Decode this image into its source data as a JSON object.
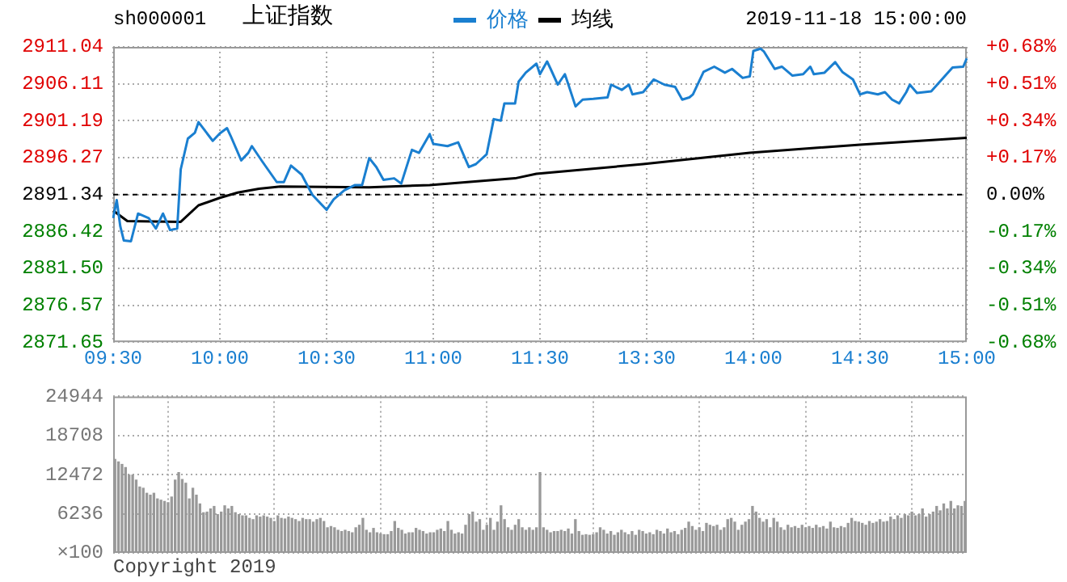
{
  "chart_data": [
    {
      "type": "line",
      "title": "上证指数",
      "subtitle": "sh000001",
      "annotations": [
        "2019-11-18 15:00:00"
      ],
      "legend": "top",
      "grid": true,
      "marker": "none",
      "line_style": "solid",
      "categories": [
        "09:30",
        null,
        null,
        null,
        null,
        null,
        null,
        null,
        null,
        null,
        null,
        null,
        null,
        null,
        null,
        null,
        null,
        null,
        null,
        null,
        null,
        null,
        null,
        null,
        null,
        null,
        null,
        null,
        null,
        null,
        "10:00",
        null,
        null,
        null,
        null,
        null,
        null,
        null,
        null,
        null,
        null,
        null,
        null,
        null,
        null,
        null,
        null,
        null,
        null,
        null,
        null,
        null,
        null,
        null,
        null,
        null,
        null,
        null,
        null,
        null,
        "10:30",
        null,
        null,
        null,
        null,
        null,
        null,
        null,
        null,
        null,
        null,
        null,
        null,
        null,
        null,
        null,
        null,
        null,
        null,
        null,
        null,
        null,
        null,
        null,
        null,
        null,
        null,
        null,
        null,
        null,
        "11:00",
        null,
        null,
        null,
        null,
        null,
        null,
        null,
        null,
        null,
        null,
        null,
        null,
        null,
        null,
        null,
        null,
        null,
        null,
        null,
        null,
        null,
        null,
        null,
        null,
        null,
        null,
        null,
        null,
        null,
        "11:30",
        null,
        null,
        null,
        null,
        null,
        null,
        null,
        null,
        null,
        null,
        null,
        null,
        null,
        null,
        null,
        null,
        null,
        null,
        null,
        null,
        null,
        null,
        null,
        null,
        null,
        null,
        null,
        null,
        null,
        "13:30",
        null,
        null,
        null,
        null,
        null,
        null,
        null,
        null,
        null,
        null,
        null,
        null,
        null,
        null,
        null,
        null,
        null,
        null,
        null,
        null,
        null,
        null,
        null,
        null,
        null,
        null,
        null,
        null,
        null,
        "14:00",
        null,
        null,
        null,
        null,
        null,
        null,
        null,
        null,
        null,
        null,
        null,
        null,
        null,
        null,
        null,
        null,
        null,
        null,
        null,
        null,
        null,
        null,
        null,
        null,
        null,
        null,
        null,
        null,
        null,
        "14:30",
        null,
        null,
        null,
        null,
        null,
        null,
        null,
        null,
        null,
        null,
        null,
        null,
        null,
        null,
        null,
        null,
        null,
        null,
        null,
        null,
        null,
        null,
        null,
        null,
        null,
        null,
        null,
        null,
        null,
        "15:00"
      ],
      "ylim": [
        2871.65,
        2911.04
      ],
      "yticks": [
        2871.65,
        2876.57,
        {
          "value": 2881.5,
          "label": "2881.50"
        },
        2886.42,
        2891.34,
        2896.27,
        2901.19,
        2906.11,
        2911.04
      ],
      "y2lim": [
        -0.68,
        0.68
      ],
      "y2ticks": [
        {
          "value": -0.68,
          "label": "-0.68%"
        },
        {
          "value": -0.51,
          "label": "-0.51%"
        },
        {
          "value": -0.34,
          "label": "-0.34%"
        },
        {
          "value": -0.17,
          "label": "-0.17%"
        },
        {
          "value": 0,
          "label": "0.00%"
        },
        {
          "value": 0.17,
          "label": "+0.17%"
        },
        {
          "value": 0.34,
          "label": "+0.34%"
        },
        {
          "value": 0.51,
          "label": "+0.51%"
        },
        {
          "value": 0.68,
          "label": "+0.68%"
        }
      ],
      "ref_lines": [
        {
          "axis": "y",
          "value": 2891.34,
          "color": "#000000",
          "line_style": "dashed"
        }
      ],
      "series": [
        {
          "name": "价格",
          "color": "#1a7fd0",
          "values": [
            2888.2,
            2890.6,
            2887.1,
            2885.2,
            null,
            2885.1,
            null,
            2888.8,
            null,
            null,
            2888.2,
            null,
            2886.8,
            null,
            2888.8,
            null,
            2886.6,
            null,
            2886.8,
            2894.7,
            null,
            2898.8,
            null,
            2899.6,
            2901.0,
            null,
            null,
            null,
            2898.5,
            null,
            2899.5,
            null,
            2900.2,
            2899.2,
            null,
            null,
            2895.9,
            null,
            2896.9,
            2897.8,
            null,
            null,
            2895.7,
            null,
            null,
            null,
            2893.0,
            null,
            2893.0,
            null,
            2895.2,
            null,
            null,
            2894.0,
            null,
            null,
            2891.3,
            null,
            null,
            null,
            2889.3,
            null,
            2890.7,
            null,
            null,
            2891.9,
            null,
            null,
            2892.6,
            null,
            2892.6,
            null,
            2896.2,
            null,
            2895.0,
            null,
            2893.3,
            null,
            null,
            2893.5,
            null,
            2892.8,
            null,
            null,
            2897.3,
            null,
            2896.9,
            null,
            null,
            2899.4,
            2898.1,
            null,
            null,
            null,
            2897.8,
            null,
            null,
            2898.3,
            null,
            null,
            2895.0,
            null,
            2895.4,
            null,
            null,
            2896.7,
            null,
            2901.4,
            null,
            2901.2,
            2903.5,
            null,
            null,
            2903.5,
            2906.4,
            null,
            2907.6,
            null,
            null,
            2908.8,
            2907.4,
            null,
            2909.1,
            2908.1,
            null,
            2906.0,
            null,
            2907.4,
            2906.0,
            null,
            2903.1,
            null,
            2904.0,
            null,
            null,
            2904.1,
            null,
            null,
            null,
            2904.3,
            2906.0,
            null,
            null,
            2905.3,
            null,
            2906.0,
            2904.7,
            null,
            null,
            2905.0,
            null,
            null,
            2906.7,
            null,
            null,
            2906.0,
            null,
            null,
            2905.7,
            null,
            2904.0,
            null,
            2904.3,
            2904.7,
            null,
            null,
            2907.7,
            null,
            null,
            2908.4,
            null,
            null,
            2907.6,
            null,
            2908.1,
            null,
            null,
            2906.9,
            null,
            2907.1,
            2910.5,
            null,
            2910.8,
            2910.4,
            null,
            null,
            2908.1,
            null,
            2908.4,
            null,
            null,
            2907.2,
            null,
            null,
            2907.4,
            null,
            2908.4,
            2907.4,
            null,
            null,
            2907.6,
            null,
            null,
            2909.0,
            null,
            2907.7,
            null,
            null,
            2906.7,
            null,
            2904.7,
            null,
            2905.0,
            null,
            null,
            2904.7,
            null,
            2905.0,
            null,
            2904.0,
            null,
            2903.5,
            null,
            2905.0,
            2906.0,
            null,
            2904.9,
            null,
            null,
            null,
            2905.1,
            null,
            null,
            2906.7,
            null,
            null,
            2908.3,
            null,
            null,
            2908.4,
            2909.5
          ]
        },
        {
          "name": "均线",
          "color": "#000000",
          "values": [
            2889.2,
            null,
            null,
            null,
            2887.8,
            null,
            null,
            null,
            null,
            null,
            null,
            null,
            null,
            null,
            null,
            null,
            null,
            null,
            null,
            2887.7,
            null,
            null,
            null,
            null,
            2889.9,
            null,
            null,
            null,
            null,
            null,
            2890.9,
            null,
            null,
            null,
            null,
            2891.6,
            null,
            null,
            null,
            null,
            null,
            2892.1,
            null,
            null,
            null,
            null,
            null,
            2892.4,
            null,
            null,
            null,
            null,
            null,
            null,
            null,
            null,
            null,
            null,
            null,
            null,
            null,
            null,
            null,
            null,
            null,
            null,
            null,
            null,
            null,
            null,
            null,
            null,
            2892.3,
            null,
            null,
            null,
            null,
            null,
            null,
            null,
            null,
            null,
            null,
            null,
            null,
            null,
            null,
            null,
            null,
            2892.6,
            null,
            null,
            null,
            null,
            null,
            null,
            null,
            null,
            null,
            null,
            null,
            null,
            null,
            null,
            null,
            null,
            null,
            null,
            null,
            null,
            null,
            null,
            null,
            2893.5,
            null,
            null,
            null,
            null,
            null,
            2894.1,
            null,
            null,
            null,
            null,
            null,
            null,
            null,
            null,
            null,
            null,
            null,
            null,
            null,
            null,
            null,
            null,
            null,
            null,
            null,
            null,
            null,
            null,
            null,
            null,
            null,
            null,
            null,
            null,
            null,
            2895.4,
            null,
            null,
            null,
            null,
            null,
            null,
            null,
            null,
            null,
            null,
            null,
            null,
            null,
            null,
            null,
            null,
            null,
            null,
            null,
            null,
            null,
            null,
            null,
            null,
            null,
            null,
            null,
            null,
            null,
            2896.9,
            null,
            null,
            null,
            null,
            null,
            null,
            null,
            null,
            null,
            null,
            null,
            null,
            null,
            null,
            null,
            null,
            null,
            null,
            null,
            null,
            null,
            null,
            null,
            null,
            null,
            null,
            null,
            null,
            null,
            null,
            2898.0,
            null,
            null,
            null,
            null,
            null,
            null,
            null,
            null,
            null,
            null,
            null,
            null,
            null,
            null,
            null,
            null,
            null,
            null,
            null,
            null,
            null,
            null,
            null,
            null,
            null,
            null,
            null,
            null,
            null,
            2898.9
          ]
        }
      ]
    },
    {
      "type": "bar",
      "color": "#999999",
      "grid": true,
      "tick_labels": "y",
      "annotations": [
        "Copyright 2019"
      ],
      "ylabel": "×100",
      "categories": [
        null,
        null,
        null,
        null,
        null,
        null,
        null,
        null,
        null,
        null,
        null,
        null,
        null,
        null,
        null,
        null,
        null,
        null,
        null,
        null,
        null,
        null,
        null,
        null,
        null,
        null,
        null,
        null,
        null,
        null,
        null,
        null,
        null,
        null,
        null,
        null,
        null,
        null,
        null,
        null,
        null,
        null,
        null,
        null,
        null,
        null,
        null,
        null,
        null,
        null,
        null,
        null,
        null,
        null,
        null,
        null,
        null,
        null,
        null,
        null,
        null,
        null,
        null,
        null,
        null,
        null,
        null,
        null,
        null,
        null,
        null,
        null,
        null,
        null,
        null,
        null,
        null,
        null,
        null,
        null,
        null,
        null,
        null,
        null,
        null,
        null,
        null,
        null,
        null,
        null,
        null,
        null,
        null,
        null,
        null,
        null,
        null,
        null,
        null,
        null,
        null,
        null,
        null,
        null,
        null,
        null,
        null,
        null,
        null,
        null,
        null,
        null,
        null,
        null,
        null,
        null,
        null,
        null,
        null,
        null,
        null,
        null,
        null,
        null,
        null,
        null,
        null,
        null,
        null,
        null,
        null,
        null,
        null,
        null,
        null,
        null,
        null,
        null,
        null,
        null,
        null,
        null,
        null,
        null,
        null,
        null,
        null,
        null,
        null,
        null,
        null,
        null,
        null,
        null,
        null,
        null,
        null,
        null,
        null,
        null,
        null,
        null,
        null,
        null,
        null,
        null,
        null,
        null,
        null,
        null,
        null,
        null,
        null,
        null,
        null,
        null,
        null,
        null,
        null,
        null,
        null,
        null,
        null,
        null,
        null,
        null,
        null,
        null,
        null,
        null,
        null,
        null,
        null,
        null,
        null,
        null,
        null,
        null,
        null,
        null,
        null,
        null,
        null,
        null,
        null,
        null,
        null,
        null,
        null,
        null,
        null,
        null,
        null,
        null,
        null,
        null,
        null,
        null,
        null,
        null,
        null,
        null,
        null,
        null,
        null,
        null,
        null,
        null,
        null,
        null,
        null,
        null,
        null,
        null,
        null,
        null,
        null,
        null,
        null,
        null,
        null
      ],
      "ylim": [
        0,
        24944
      ],
      "yticks": [
        {
          "value": 0,
          "label": null
        },
        6236,
        12472,
        18708,
        24944
      ],
      "values": [
        14900,
        14500,
        14100,
        13600,
        12400,
        12400,
        11600,
        10500,
        10300,
        9500,
        9200,
        9500,
        8600,
        8400,
        8200,
        8000,
        8900,
        11600,
        12800,
        11700,
        11100,
        8600,
        10300,
        9200,
        7800,
        6400,
        6500,
        7000,
        7400,
        6100,
        6500,
        7500,
        7000,
        7400,
        6400,
        6100,
        5900,
        5900,
        5500,
        5300,
        5900,
        5700,
        5900,
        5700,
        5500,
        5000,
        5900,
        5500,
        5400,
        5700,
        5500,
        5300,
        5000,
        5500,
        5300,
        5300,
        4900,
        5300,
        5500,
        5000,
        4000,
        4200,
        4000,
        3600,
        3400,
        3600,
        3400,
        3200,
        4000,
        4400,
        5500,
        3600,
        3200,
        3900,
        3200,
        3000,
        2900,
        2900,
        3400,
        5000,
        3900,
        3600,
        3000,
        3200,
        3200,
        3900,
        3600,
        3400,
        3000,
        3200,
        3200,
        3600,
        3800,
        3400,
        5000,
        3600,
        3000,
        3200,
        3000,
        4400,
        6100,
        6500,
        4900,
        5300,
        3600,
        4400,
        5500,
        3600,
        4900,
        7500,
        5300,
        4000,
        3600,
        4400,
        5300,
        4000,
        3600,
        4000,
        3600,
        4000,
        12800,
        4000,
        3600,
        3200,
        3400,
        3400,
        3600,
        3400,
        3800,
        3000,
        5300,
        3400,
        2800,
        2900,
        2800,
        2900,
        3200,
        4000,
        3600,
        3000,
        3400,
        2800,
        3200,
        3600,
        3200,
        2900,
        3400,
        2800,
        3600,
        3400,
        3000,
        3200,
        2900,
        3600,
        3400,
        3000,
        3800,
        3200,
        3400,
        2900,
        3600,
        3900,
        4900,
        4200,
        3600,
        4000,
        3400,
        4700,
        4400,
        4200,
        4400,
        3600,
        4000,
        5300,
        5500,
        4900,
        3600,
        4400,
        4900,
        5300,
        7400,
        6500,
        5500,
        4900,
        5300,
        4000,
        5500,
        4900,
        4000,
        3600,
        4400,
        4000,
        4200,
        3900,
        4400,
        4000,
        4200,
        3900,
        4400,
        4000,
        4200,
        3800,
        4900,
        4000,
        3900,
        4200,
        4000,
        4700,
        5500,
        5000,
        4900,
        4700,
        4400,
        5000,
        4700,
        4900,
        5300,
        4900,
        5000,
        5700,
        5300,
        5900,
        5500,
        6100,
        5900,
        6500,
        5900,
        6100,
        7000,
        5700,
        6100,
        6500,
        7400,
        6700,
        7800,
        7000,
        8200,
        7000,
        7500,
        7400,
        8200
      ]
    }
  ]
}
